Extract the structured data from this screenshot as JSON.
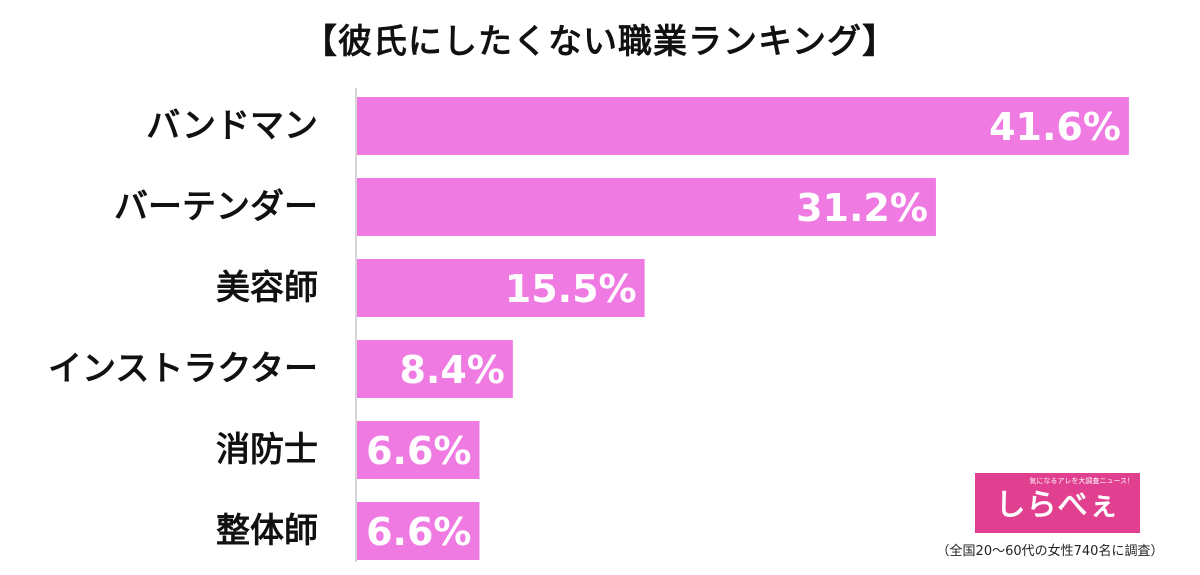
{
  "chart_data": {
    "type": "bar",
    "orientation": "horizontal",
    "title": "【彼氏にしたくない職業ランキング】",
    "categories": [
      "バンドマン",
      "バーテンダー",
      "美容師",
      "インストラクター",
      "消防士",
      "整体師"
    ],
    "values": [
      41.6,
      31.2,
      15.5,
      8.4,
      6.6,
      6.6
    ],
    "value_labels": [
      "41.6%",
      "31.2%",
      "15.5%",
      "8.4%",
      "6.6%",
      "6.6%"
    ],
    "unit": "%",
    "xlim": [
      0,
      45
    ],
    "grid": false,
    "legend": "none",
    "bar_color": "#ee7ae2",
    "axis_color": "#c8c8c8"
  },
  "logo": {
    "tagline": "気になるアレを大調査ニュース！",
    "name": "しらべぇ",
    "color": "#e0408f"
  },
  "source_note": "（全国20～60代の女性740名に調査）"
}
